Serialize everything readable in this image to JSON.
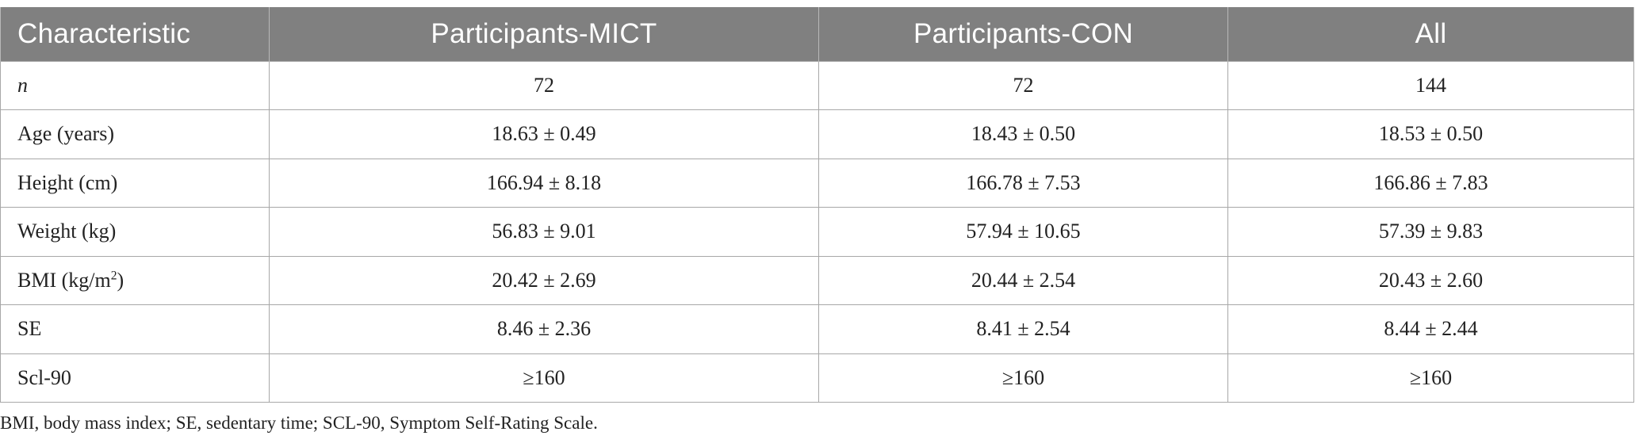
{
  "table": {
    "headers": [
      "Characteristic",
      "Participants-MICT",
      "Participants-CON",
      "All"
    ],
    "rows": [
      {
        "label": "n",
        "values": [
          "72",
          "72",
          "144"
        ]
      },
      {
        "label": "Age (years)",
        "values": [
          "18.63 ± 0.49",
          "18.43 ± 0.50",
          "18.53 ± 0.50"
        ]
      },
      {
        "label": "Height (cm)",
        "values": [
          "166.94 ± 8.18",
          "166.78 ± 7.53",
          "166.86 ± 7.83"
        ]
      },
      {
        "label": "Weight (kg)",
        "values": [
          "56.83 ± 9.01",
          "57.94 ± 10.65",
          "57.39 ± 9.83"
        ]
      },
      {
        "label_prefix": "BMI (kg/m",
        "label_sup": "2",
        "label_suffix": ")",
        "values": [
          "20.42 ± 2.69",
          "20.44 ± 2.54",
          "20.43 ± 2.60"
        ]
      },
      {
        "label": "SE",
        "values": [
          "8.46 ± 2.36",
          "8.41 ± 2.54",
          "8.44 ± 2.44"
        ]
      },
      {
        "label": "Scl-90",
        "values": [
          "≥160",
          "≥160",
          "≥160"
        ]
      }
    ]
  },
  "footnote": "BMI, body mass index; SE, sedentary time; SCL-90, Symptom Self-Rating Scale."
}
